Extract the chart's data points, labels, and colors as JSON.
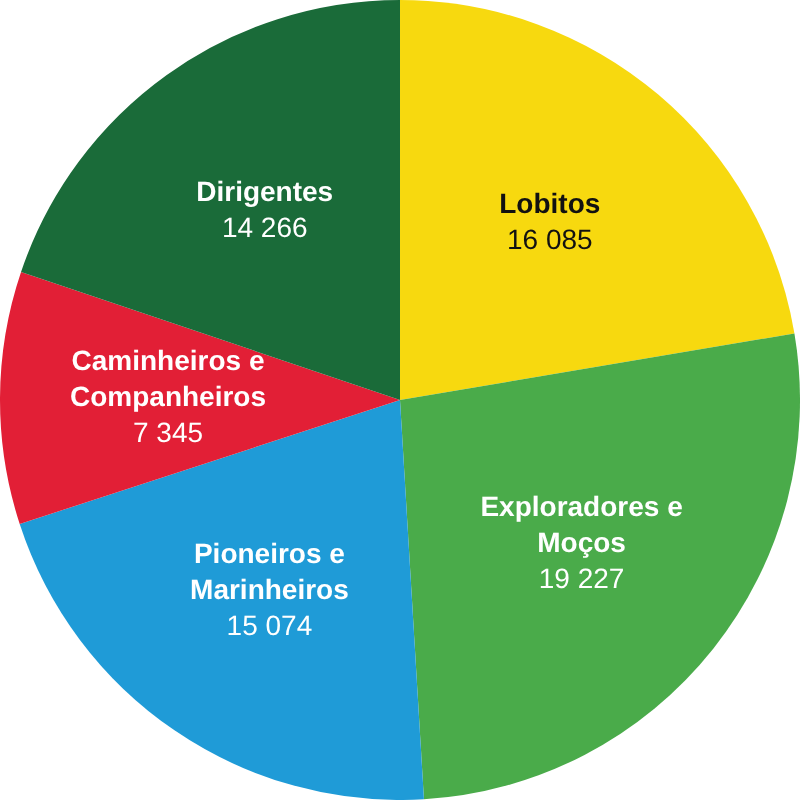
{
  "chart_data": {
    "type": "pie",
    "categories": [
      "Lobitos",
      "Exploradores e Moços",
      "Pioneiros e Marinheiros",
      "Caminheiros e Companheiros",
      "Dirigentes"
    ],
    "values": [
      16085,
      19227,
      15074,
      7345,
      14266
    ],
    "value_labels": [
      "16 085",
      "19 227",
      "15 074",
      "7 345",
      "14 266"
    ],
    "colors": [
      "#f7d90f",
      "#4aab4a",
      "#1f9bd7",
      "#e21f36",
      "#1a6b39"
    ],
    "legend": false
  }
}
